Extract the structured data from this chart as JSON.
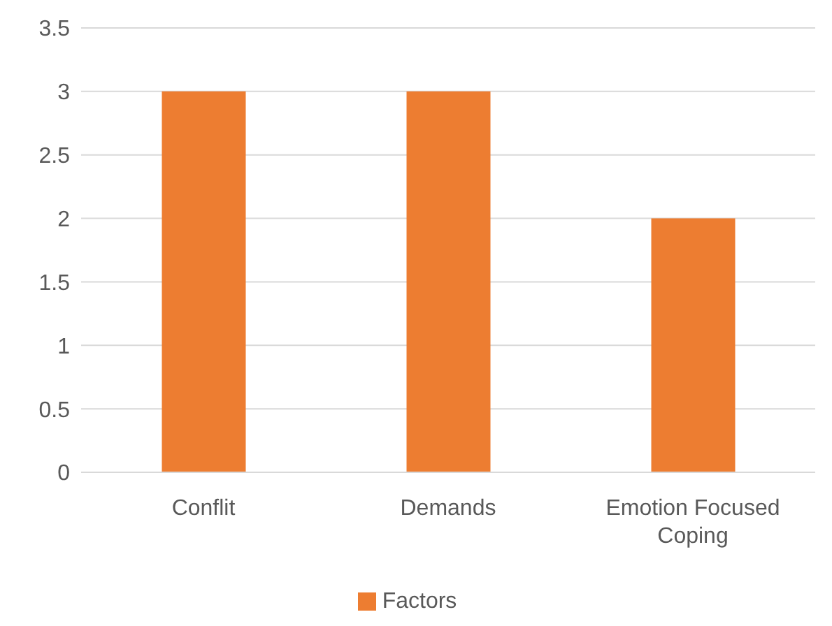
{
  "chart_data": {
    "type": "bar",
    "categories": [
      "Conflit",
      "Demands",
      "Emotion Focused Coping"
    ],
    "series": [
      {
        "name": "Factors",
        "color": "#ed7d31",
        "values": [
          3,
          3,
          2
        ]
      }
    ],
    "ylim": [
      0,
      3.5
    ],
    "yticks": [
      0,
      0.5,
      1,
      1.5,
      2,
      2.5,
      3,
      3.5
    ],
    "grid": "y",
    "legend": "bottom"
  }
}
